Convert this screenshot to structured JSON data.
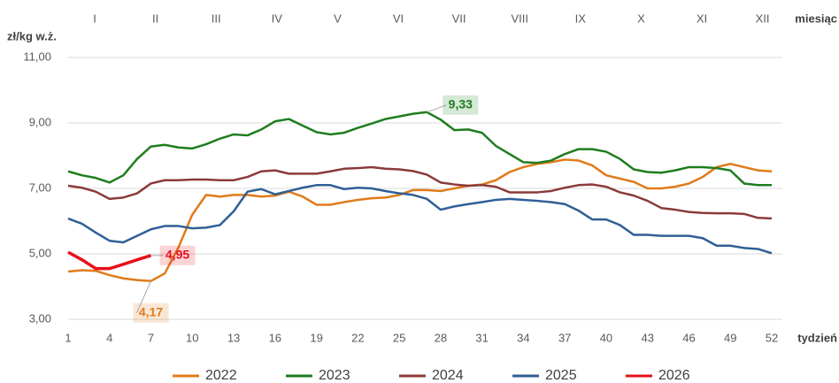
{
  "chart_data": {
    "type": "line",
    "y_label": "zł/kg w.ż.",
    "x_label": "tydzień",
    "period_label": "miesiąc",
    "months": [
      "I",
      "II",
      "III",
      "IV",
      "V",
      "VI",
      "VII",
      "VIII",
      "IX",
      "X",
      "XI",
      "XII"
    ],
    "x": [
      1,
      2,
      3,
      4,
      5,
      6,
      7,
      8,
      9,
      10,
      11,
      12,
      13,
      14,
      15,
      16,
      17,
      18,
      19,
      20,
      21,
      22,
      23,
      24,
      25,
      26,
      27,
      28,
      29,
      30,
      31,
      32,
      33,
      34,
      35,
      36,
      37,
      38,
      39,
      40,
      41,
      42,
      43,
      44,
      45,
      46,
      47,
      48,
      49,
      50,
      51,
      52
    ],
    "xlim": [
      1,
      52
    ],
    "xticks": [
      1,
      4,
      7,
      10,
      13,
      16,
      19,
      22,
      25,
      28,
      31,
      34,
      37,
      40,
      43,
      46,
      49,
      52
    ],
    "ylim": [
      3,
      11
    ],
    "yticks": [
      {
        "value": 3,
        "label": "3,00"
      },
      {
        "value": 5,
        "label": "5,00"
      },
      {
        "value": 7,
        "label": "7,00"
      },
      {
        "value": 9,
        "label": "9,00"
      },
      {
        "value": 11,
        "label": "11,00"
      }
    ],
    "grid": true,
    "series": [
      {
        "name": "2022",
        "color": "#e07b1a",
        "values": [
          4.46,
          4.5,
          4.48,
          4.35,
          4.25,
          4.2,
          4.17,
          4.4,
          5.2,
          6.2,
          6.8,
          6.75,
          6.8,
          6.8,
          6.75,
          6.78,
          6.9,
          6.75,
          6.5,
          6.5,
          6.58,
          6.65,
          6.7,
          6.72,
          6.8,
          6.95,
          6.95,
          6.92,
          7.0,
          7.08,
          7.12,
          7.25,
          7.5,
          7.65,
          7.75,
          7.8,
          7.88,
          7.85,
          7.7,
          7.4,
          7.3,
          7.2,
          7.0,
          7.0,
          7.05,
          7.15,
          7.35,
          7.65,
          7.75,
          7.65,
          7.55,
          7.52
        ],
        "value_labels": [
          null,
          null,
          null,
          null,
          null,
          null,
          "4,17",
          null,
          null,
          null,
          null,
          null,
          null,
          null,
          null,
          null,
          null,
          null,
          null,
          null,
          null,
          null,
          null,
          null,
          null,
          null,
          null,
          null,
          null,
          null,
          null,
          null,
          null,
          null,
          null,
          null,
          null,
          null,
          null,
          null,
          null,
          null,
          null,
          null,
          null,
          null,
          null,
          null,
          null,
          null,
          null,
          null
        ]
      },
      {
        "name": "2023",
        "color": "#1e7d1e",
        "values": [
          7.52,
          7.4,
          7.32,
          7.18,
          7.4,
          7.9,
          8.28,
          8.33,
          8.25,
          8.22,
          8.35,
          8.52,
          8.65,
          8.62,
          8.8,
          9.05,
          9.12,
          8.92,
          8.72,
          8.65,
          8.7,
          8.85,
          8.98,
          9.12,
          9.2,
          9.28,
          9.33,
          9.1,
          8.78,
          8.8,
          8.7,
          8.3,
          8.05,
          7.8,
          7.78,
          7.85,
          8.05,
          8.2,
          8.2,
          8.12,
          7.9,
          7.58,
          7.5,
          7.48,
          7.55,
          7.65,
          7.65,
          7.62,
          7.55,
          7.15,
          7.1,
          7.1
        ],
        "value_labels": [
          null,
          null,
          null,
          null,
          null,
          null,
          null,
          null,
          null,
          null,
          null,
          null,
          null,
          null,
          null,
          null,
          null,
          null,
          null,
          null,
          null,
          null,
          null,
          null,
          null,
          null,
          "9,33",
          null,
          null,
          null,
          null,
          null,
          null,
          null,
          null,
          null,
          null,
          null,
          null,
          null,
          null,
          null,
          null,
          null,
          null,
          null,
          null,
          null,
          null,
          null,
          null,
          null
        ]
      },
      {
        "name": "2024",
        "color": "#8b3a3a",
        "values": [
          7.08,
          7.02,
          6.9,
          6.68,
          6.72,
          6.85,
          7.15,
          7.25,
          7.25,
          7.27,
          7.27,
          7.25,
          7.25,
          7.35,
          7.52,
          7.55,
          7.45,
          7.45,
          7.45,
          7.52,
          7.6,
          7.62,
          7.65,
          7.6,
          7.58,
          7.53,
          7.42,
          7.18,
          7.12,
          7.08,
          7.1,
          7.05,
          6.88,
          6.88,
          6.88,
          6.92,
          7.02,
          7.1,
          7.12,
          7.05,
          6.88,
          6.78,
          6.62,
          6.4,
          6.35,
          6.28,
          6.25,
          6.24,
          6.24,
          6.22,
          6.1,
          6.08
        ]
      },
      {
        "name": "2025",
        "color": "#2f5f96",
        "values": [
          6.08,
          5.92,
          5.65,
          5.4,
          5.35,
          5.55,
          5.75,
          5.85,
          5.85,
          5.78,
          5.8,
          5.88,
          6.3,
          6.9,
          6.98,
          6.82,
          6.92,
          7.02,
          7.1,
          7.1,
          6.98,
          7.02,
          7.0,
          6.92,
          6.85,
          6.8,
          6.68,
          6.35,
          6.45,
          6.52,
          6.58,
          6.65,
          6.68,
          6.65,
          6.62,
          6.58,
          6.52,
          6.32,
          6.05,
          6.05,
          5.88,
          5.58,
          5.58,
          5.55,
          5.55,
          5.55,
          5.48,
          5.25,
          5.25,
          5.18,
          5.15,
          5.02
        ]
      },
      {
        "name": "2026",
        "color": "#e8101a",
        "values": [
          5.05,
          4.82,
          4.55,
          4.55,
          4.68,
          4.82,
          4.95,
          null,
          null,
          null,
          null,
          null,
          null,
          null,
          null,
          null,
          null,
          null,
          null,
          null,
          null,
          null,
          null,
          null,
          null,
          null,
          null,
          null,
          null,
          null,
          null,
          null,
          null,
          null,
          null,
          null,
          null,
          null,
          null,
          null,
          null,
          null,
          null,
          null,
          null,
          null,
          null,
          null,
          null,
          null,
          null,
          null
        ],
        "value_labels": [
          null,
          null,
          null,
          null,
          null,
          null,
          "4,95",
          null,
          null,
          null,
          null,
          null,
          null,
          null,
          null,
          null,
          null,
          null,
          null,
          null,
          null,
          null,
          null,
          null,
          null,
          null,
          null,
          null,
          null,
          null,
          null,
          null,
          null,
          null,
          null,
          null,
          null,
          null,
          null,
          null,
          null,
          null,
          null,
          null,
          null,
          null,
          null,
          null,
          null,
          null,
          null,
          null
        ]
      }
    ]
  }
}
